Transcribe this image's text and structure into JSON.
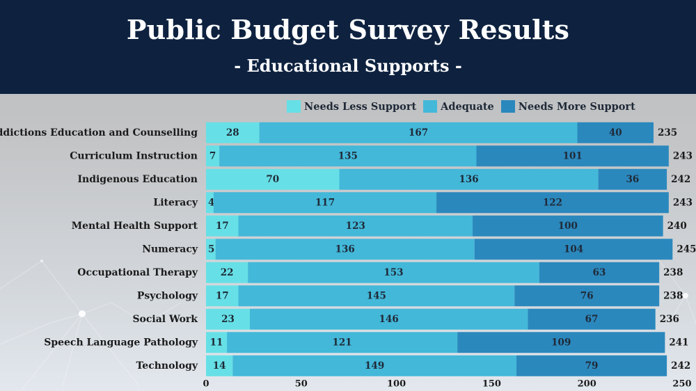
{
  "header": {
    "title": "Public Budget Survey Results",
    "subtitle": "- Educational Supports -"
  },
  "colors": {
    "header_bg": "#0e2240",
    "needs_less": "#66e0e6",
    "adequate": "#43b8d9",
    "needs_more": "#2b88bd"
  },
  "chart_data": {
    "type": "bar",
    "orientation": "horizontal",
    "stacked": true,
    "categories": [
      "Addictions Education and Counselling",
      "Curriculum Instruction",
      "Indigenous Education",
      "Literacy",
      "Mental Health Support",
      "Numeracy",
      "Occupational Therapy",
      "Psychology",
      "Social Work",
      "Speech Language Pathology",
      "Technology"
    ],
    "series": [
      {
        "name": "Needs Less Support",
        "values": [
          28,
          7,
          70,
          4,
          17,
          5,
          22,
          17,
          23,
          11,
          14
        ]
      },
      {
        "name": "Adequate",
        "values": [
          167,
          135,
          136,
          117,
          123,
          136,
          153,
          145,
          146,
          121,
          149
        ]
      },
      {
        "name": "Needs More Support",
        "values": [
          40,
          101,
          36,
          122,
          100,
          104,
          63,
          76,
          67,
          109,
          79
        ]
      }
    ],
    "totals": [
      235,
      243,
      242,
      243,
      240,
      245,
      238,
      238,
      236,
      241,
      242
    ],
    "xlim": [
      0,
      250
    ],
    "xticks": [
      0,
      50,
      100,
      150,
      200,
      250
    ],
    "legend_position": "top",
    "grid": false
  }
}
